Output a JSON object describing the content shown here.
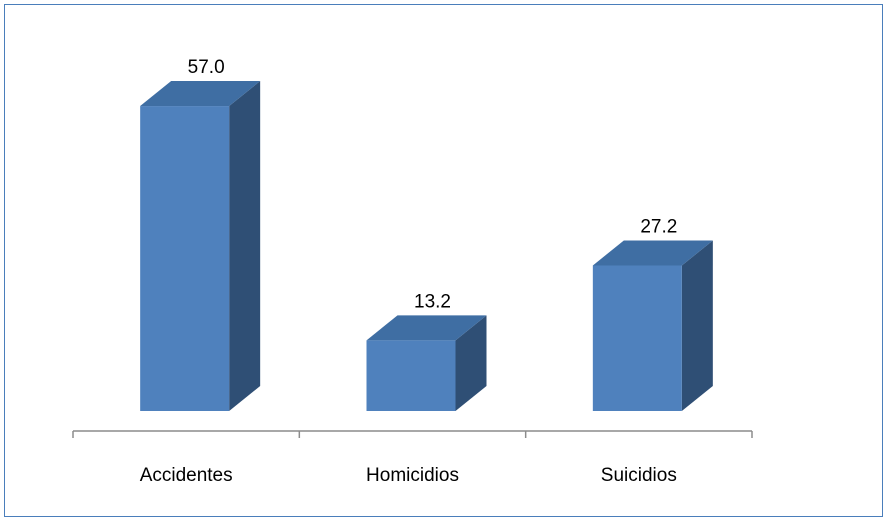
{
  "chart_data": {
    "type": "bar",
    "style": "3d-column",
    "categories": [
      "Accidentes",
      "Homicidios",
      "Suicidios"
    ],
    "values": [
      57.0,
      13.2,
      27.2
    ],
    "value_labels": [
      "57.0",
      "13.2",
      "27.2"
    ],
    "title": "",
    "xlabel": "",
    "ylabel": "",
    "ylim": [
      0,
      60
    ],
    "grid": false,
    "legend": "none",
    "colors": {
      "front": "#4f81bd",
      "top": "#3f6ea3",
      "side": "#2f4f75",
      "axis": "#8c8c8c",
      "border": "#4a7ebb"
    }
  }
}
